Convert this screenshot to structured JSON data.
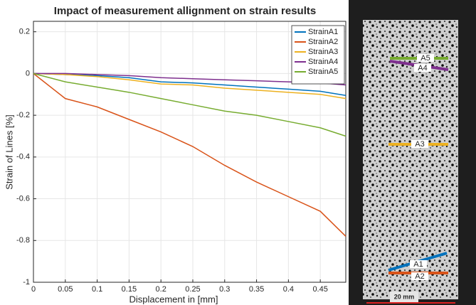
{
  "chart_data": {
    "type": "line",
    "title": "Impact of measurement allignment on strain results",
    "x_label": "Displacement in [mm]",
    "y_label": "Strain of Lines [%]",
    "x": [
      0,
      0.05,
      0.1,
      0.15,
      0.2,
      0.25,
      0.3,
      0.35,
      0.4,
      0.45,
      0.49
    ],
    "series": [
      {
        "name": "StrainA1",
        "color": "#0072bd",
        "values": [
          0,
          -0.005,
          -0.01,
          -0.02,
          -0.04,
          -0.045,
          -0.055,
          -0.065,
          -0.075,
          -0.085,
          -0.105
        ]
      },
      {
        "name": "StrainA2",
        "color": "#d95319",
        "values": [
          0,
          -0.12,
          -0.16,
          -0.22,
          -0.28,
          -0.35,
          -0.44,
          -0.52,
          -0.59,
          -0.66,
          -0.78
        ]
      },
      {
        "name": "StrainA3",
        "color": "#edb120",
        "values": [
          0,
          -0.005,
          -0.015,
          -0.03,
          -0.05,
          -0.055,
          -0.07,
          -0.08,
          -0.09,
          -0.1,
          -0.12
        ]
      },
      {
        "name": "StrainA4",
        "color": "#7e2f8e",
        "values": [
          0,
          0,
          -0.005,
          -0.01,
          -0.02,
          -0.025,
          -0.03,
          -0.035,
          -0.04,
          -0.045,
          -0.055
        ]
      },
      {
        "name": "StrainA5",
        "color": "#77ac30",
        "values": [
          0,
          -0.04,
          -0.065,
          -0.09,
          -0.12,
          -0.15,
          -0.18,
          -0.2,
          -0.23,
          -0.26,
          -0.3
        ]
      }
    ],
    "xlim": [
      0,
      0.49
    ],
    "ylim": [
      -1,
      0.25
    ],
    "xticks": [
      0,
      0.05,
      0.1,
      0.15,
      0.2,
      0.25,
      0.3,
      0.35,
      0.4,
      0.45
    ],
    "yticks": [
      -1,
      -0.8,
      -0.6,
      -0.4,
      -0.2,
      0,
      0.2
    ],
    "grid": true,
    "legend": "top-right"
  },
  "specimen": {
    "labels": [
      "A5",
      "A4",
      "A3",
      "A1",
      "A2"
    ],
    "scale_bar": "20 mm"
  }
}
